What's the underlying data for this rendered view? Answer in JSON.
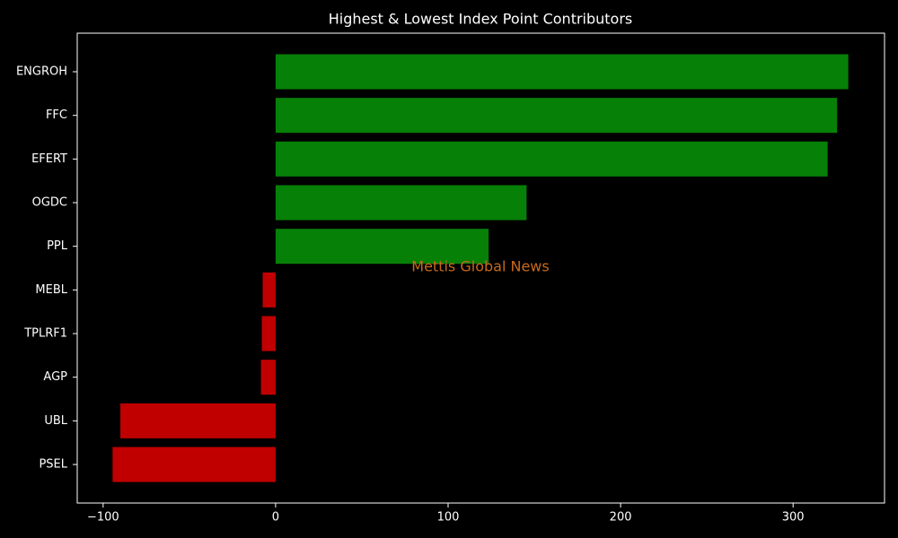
{
  "chart_data": {
    "type": "hbar",
    "title": "Highest & Lowest Index Point Contributors",
    "watermark": "Mettis Global News",
    "categories": [
      "ENGROH",
      "FFC",
      "EFERT",
      "OGDC",
      "PPL",
      "MEBL",
      "TPLRF1",
      "AGP",
      "UBL",
      "PSEL"
    ],
    "values": [
      332,
      325.5,
      320,
      145.5,
      123.5,
      -7.5,
      -8,
      -8.5,
      -90,
      -94.5
    ],
    "colors": [
      "#078007",
      "#078007",
      "#078007",
      "#078007",
      "#078007",
      "#c00000",
      "#c00000",
      "#c00000",
      "#c00000",
      "#c00000"
    ],
    "xlim": [
      -115,
      353
    ],
    "xticks": [
      {
        "value": -100,
        "label": "−100"
      },
      0,
      100,
      200,
      300
    ]
  }
}
